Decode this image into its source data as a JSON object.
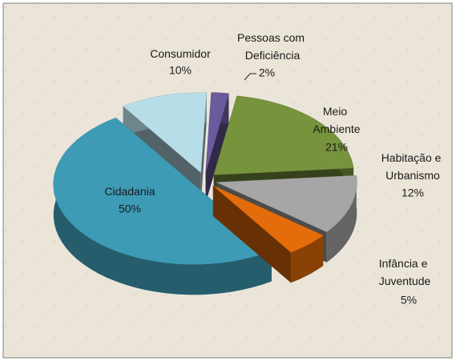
{
  "chart_data": {
    "type": "pie3d",
    "categories": [
      "Pessoas com Deficiência",
      "Meio Ambiente",
      "Habitação e Urbanismo",
      "Infância e Juventude",
      "Cidadania",
      "Consumidor"
    ],
    "values": [
      2,
      21,
      12,
      5,
      50,
      10
    ],
    "value_labels": [
      "2%",
      "21%",
      "12%",
      "5%",
      "50%",
      "10%"
    ],
    "colors": [
      "#6b5b9e",
      "#77933c",
      "#a6a6a6",
      "#e46c0a",
      "#3d9bb6",
      "#b7dde8"
    ]
  }
}
